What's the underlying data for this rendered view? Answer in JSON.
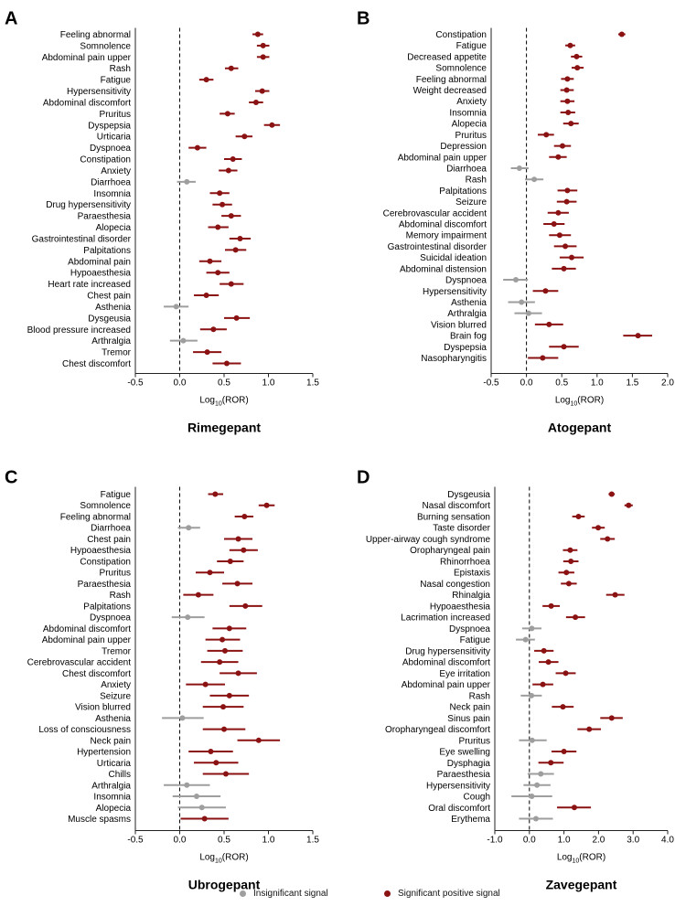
{
  "colors": {
    "significant": "#8b1212",
    "insignificant": "#9e9e9e",
    "axis": "#222222"
  },
  "legend": {
    "insignificant": "Insignificant signal",
    "significant": "Significant positive signal"
  },
  "chart_data": [
    {
      "type": "forest",
      "panel_label": "A",
      "title": "Rimegepant",
      "xlabel": "Log10(ROR)",
      "xlim": [
        -0.5,
        1.5
      ],
      "xticks": [
        "-0.5",
        "0.0",
        "0.5",
        "1.0",
        "1.5"
      ],
      "reference_line": 0,
      "rows": [
        {
          "label": "Feeling abnormal",
          "est": 0.88,
          "lo": 0.82,
          "hi": 0.94,
          "sig": true
        },
        {
          "label": "Somnolence",
          "est": 0.94,
          "lo": 0.87,
          "hi": 1.01,
          "sig": true
        },
        {
          "label": "Abdominal pain upper",
          "est": 0.94,
          "lo": 0.87,
          "hi": 1.01,
          "sig": true
        },
        {
          "label": "Rash",
          "est": 0.58,
          "lo": 0.51,
          "hi": 0.66,
          "sig": true
        },
        {
          "label": "Fatigue",
          "est": 0.3,
          "lo": 0.22,
          "hi": 0.38,
          "sig": true
        },
        {
          "label": "Hypersensitivity",
          "est": 0.93,
          "lo": 0.85,
          "hi": 1.01,
          "sig": true
        },
        {
          "label": "Abdominal discomfort",
          "est": 0.86,
          "lo": 0.78,
          "hi": 0.94,
          "sig": true
        },
        {
          "label": "Pruritus",
          "est": 0.54,
          "lo": 0.45,
          "hi": 0.62,
          "sig": true
        },
        {
          "label": "Dyspepsia",
          "est": 1.04,
          "lo": 0.95,
          "hi": 1.13,
          "sig": true
        },
        {
          "label": "Urticaria",
          "est": 0.73,
          "lo": 0.63,
          "hi": 0.82,
          "sig": true
        },
        {
          "label": "Dyspnoea",
          "est": 0.2,
          "lo": 0.1,
          "hi": 0.3,
          "sig": true
        },
        {
          "label": "Constipation",
          "est": 0.6,
          "lo": 0.5,
          "hi": 0.7,
          "sig": true
        },
        {
          "label": "Anxiety",
          "est": 0.55,
          "lo": 0.44,
          "hi": 0.65,
          "sig": true
        },
        {
          "label": "Diarrhoea",
          "est": 0.08,
          "lo": -0.03,
          "hi": 0.18,
          "sig": false
        },
        {
          "label": "Insomnia",
          "est": 0.45,
          "lo": 0.34,
          "hi": 0.56,
          "sig": true
        },
        {
          "label": "Drug hypersensitivity",
          "est": 0.48,
          "lo": 0.37,
          "hi": 0.59,
          "sig": true
        },
        {
          "label": "Paraesthesia",
          "est": 0.58,
          "lo": 0.47,
          "hi": 0.69,
          "sig": true
        },
        {
          "label": "Alopecia",
          "est": 0.43,
          "lo": 0.32,
          "hi": 0.55,
          "sig": true
        },
        {
          "label": "Gastrointestinal disorder",
          "est": 0.68,
          "lo": 0.56,
          "hi": 0.8,
          "sig": true
        },
        {
          "label": "Palpitations",
          "est": 0.63,
          "lo": 0.51,
          "hi": 0.75,
          "sig": true
        },
        {
          "label": "Abdominal pain",
          "est": 0.34,
          "lo": 0.22,
          "hi": 0.47,
          "sig": true
        },
        {
          "label": "Hypoaesthesia",
          "est": 0.43,
          "lo": 0.3,
          "hi": 0.56,
          "sig": true
        },
        {
          "label": "Heart rate increased",
          "est": 0.58,
          "lo": 0.45,
          "hi": 0.72,
          "sig": true
        },
        {
          "label": "Chest pain",
          "est": 0.3,
          "lo": 0.16,
          "hi": 0.44,
          "sig": true
        },
        {
          "label": "Asthenia",
          "est": -0.04,
          "lo": -0.18,
          "hi": 0.1,
          "sig": false
        },
        {
          "label": "Dysgeusia",
          "est": 0.64,
          "lo": 0.5,
          "hi": 0.79,
          "sig": true
        },
        {
          "label": "Blood pressure increased",
          "est": 0.38,
          "lo": 0.23,
          "hi": 0.53,
          "sig": true
        },
        {
          "label": "Arthralgia",
          "est": 0.04,
          "lo": -0.11,
          "hi": 0.2,
          "sig": false
        },
        {
          "label": "Tremor",
          "est": 0.31,
          "lo": 0.15,
          "hi": 0.47,
          "sig": true
        },
        {
          "label": "Chest discomfort",
          "est": 0.53,
          "lo": 0.37,
          "hi": 0.69,
          "sig": true
        }
      ]
    },
    {
      "type": "forest",
      "panel_label": "B",
      "title": "Atogepant",
      "xlabel": "Log10(ROR)",
      "xlim": [
        -0.5,
        2.0
      ],
      "xticks": [
        "-0.5",
        "0.0",
        "0.5",
        "1.0",
        "1.5",
        "2.0"
      ],
      "reference_line": 0,
      "rows": [
        {
          "label": "Constipation",
          "est": 1.35,
          "lo": 1.3,
          "hi": 1.4,
          "sig": true
        },
        {
          "label": "Fatigue",
          "est": 0.62,
          "lo": 0.55,
          "hi": 0.69,
          "sig": true
        },
        {
          "label": "Decreased appetite",
          "est": 0.71,
          "lo": 0.63,
          "hi": 0.79,
          "sig": true
        },
        {
          "label": "Somnolence",
          "est": 0.72,
          "lo": 0.64,
          "hi": 0.81,
          "sig": true
        },
        {
          "label": "Feeling abnormal",
          "est": 0.58,
          "lo": 0.49,
          "hi": 0.67,
          "sig": true
        },
        {
          "label": "Weight decreased",
          "est": 0.57,
          "lo": 0.48,
          "hi": 0.67,
          "sig": true
        },
        {
          "label": "Anxiety",
          "est": 0.58,
          "lo": 0.48,
          "hi": 0.68,
          "sig": true
        },
        {
          "label": "Insomnia",
          "est": 0.59,
          "lo": 0.48,
          "hi": 0.69,
          "sig": true
        },
        {
          "label": "Alopecia",
          "est": 0.63,
          "lo": 0.52,
          "hi": 0.74,
          "sig": true
        },
        {
          "label": "Pruritus",
          "est": 0.28,
          "lo": 0.16,
          "hi": 0.39,
          "sig": true
        },
        {
          "label": "Depression",
          "est": 0.51,
          "lo": 0.39,
          "hi": 0.63,
          "sig": true
        },
        {
          "label": "Abdominal pain upper",
          "est": 0.45,
          "lo": 0.32,
          "hi": 0.57,
          "sig": true
        },
        {
          "label": "Diarrhoea",
          "est": -0.1,
          "lo": -0.22,
          "hi": 0.03,
          "sig": false
        },
        {
          "label": "Rash",
          "est": 0.11,
          "lo": -0.02,
          "hi": 0.24,
          "sig": false
        },
        {
          "label": "Palpitations",
          "est": 0.58,
          "lo": 0.44,
          "hi": 0.72,
          "sig": true
        },
        {
          "label": "Seizure",
          "est": 0.57,
          "lo": 0.43,
          "hi": 0.71,
          "sig": true
        },
        {
          "label": "Cerebrovascular accident",
          "est": 0.45,
          "lo": 0.3,
          "hi": 0.6,
          "sig": true
        },
        {
          "label": "Abdominal discomfort",
          "est": 0.39,
          "lo": 0.24,
          "hi": 0.54,
          "sig": true
        },
        {
          "label": "Memory impairment",
          "est": 0.47,
          "lo": 0.32,
          "hi": 0.63,
          "sig": true
        },
        {
          "label": "Gastrointestinal disorder",
          "est": 0.55,
          "lo": 0.39,
          "hi": 0.71,
          "sig": true
        },
        {
          "label": "Suicidal ideation",
          "est": 0.64,
          "lo": 0.47,
          "hi": 0.81,
          "sig": true
        },
        {
          "label": "Abdominal distension",
          "est": 0.53,
          "lo": 0.36,
          "hi": 0.7,
          "sig": true
        },
        {
          "label": "Dyspnoea",
          "est": -0.15,
          "lo": -0.33,
          "hi": 0.02,
          "sig": false
        },
        {
          "label": "Hypersensitivity",
          "est": 0.27,
          "lo": 0.09,
          "hi": 0.45,
          "sig": true
        },
        {
          "label": "Asthenia",
          "est": -0.07,
          "lo": -0.26,
          "hi": 0.12,
          "sig": false
        },
        {
          "label": "Arthralgia",
          "est": 0.03,
          "lo": -0.17,
          "hi": 0.22,
          "sig": false
        },
        {
          "label": "Vision blurred",
          "est": 0.32,
          "lo": 0.12,
          "hi": 0.52,
          "sig": true
        },
        {
          "label": "Brain fog",
          "est": 1.58,
          "lo": 1.37,
          "hi": 1.78,
          "sig": true
        },
        {
          "label": "Dyspepsia",
          "est": 0.53,
          "lo": 0.32,
          "hi": 0.74,
          "sig": true
        },
        {
          "label": "Nasopharyngitis",
          "est": 0.23,
          "lo": 0.02,
          "hi": 0.45,
          "sig": true
        }
      ]
    },
    {
      "type": "forest",
      "panel_label": "C",
      "title": "Ubrogepant",
      "xlabel": "Log10(ROR)",
      "xlim": [
        -0.5,
        1.5
      ],
      "xticks": [
        "-0.5",
        "0.0",
        "0.5",
        "1.0",
        "1.5"
      ],
      "reference_line": 0,
      "rows": [
        {
          "label": "Fatigue",
          "est": 0.4,
          "lo": 0.32,
          "hi": 0.49,
          "sig": true
        },
        {
          "label": "Somnolence",
          "est": 0.98,
          "lo": 0.89,
          "hi": 1.07,
          "sig": true
        },
        {
          "label": "Feeling abnormal",
          "est": 0.73,
          "lo": 0.62,
          "hi": 0.83,
          "sig": true
        },
        {
          "label": "Diarrhoea",
          "est": 0.1,
          "lo": -0.02,
          "hi": 0.23,
          "sig": false
        },
        {
          "label": "Chest pain",
          "est": 0.66,
          "lo": 0.5,
          "hi": 0.82,
          "sig": true
        },
        {
          "label": "Hypoaesthesia",
          "est": 0.72,
          "lo": 0.56,
          "hi": 0.88,
          "sig": true
        },
        {
          "label": "Constipation",
          "est": 0.57,
          "lo": 0.42,
          "hi": 0.72,
          "sig": true
        },
        {
          "label": "Pruritus",
          "est": 0.34,
          "lo": 0.18,
          "hi": 0.5,
          "sig": true
        },
        {
          "label": "Paraesthesia",
          "est": 0.65,
          "lo": 0.48,
          "hi": 0.82,
          "sig": true
        },
        {
          "label": "Rash",
          "est": 0.21,
          "lo": 0.04,
          "hi": 0.38,
          "sig": true
        },
        {
          "label": "Palpitations",
          "est": 0.74,
          "lo": 0.56,
          "hi": 0.93,
          "sig": true
        },
        {
          "label": "Dyspnoea",
          "est": 0.09,
          "lo": -0.09,
          "hi": 0.28,
          "sig": false
        },
        {
          "label": "Abdominal discomfort",
          "est": 0.56,
          "lo": 0.37,
          "hi": 0.75,
          "sig": true
        },
        {
          "label": "Abdominal pain upper",
          "est": 0.48,
          "lo": 0.29,
          "hi": 0.68,
          "sig": true
        },
        {
          "label": "Tremor",
          "est": 0.51,
          "lo": 0.31,
          "hi": 0.71,
          "sig": true
        },
        {
          "label": "Cerebrovascular accident",
          "est": 0.45,
          "lo": 0.24,
          "hi": 0.66,
          "sig": true
        },
        {
          "label": "Chest discomfort",
          "est": 0.66,
          "lo": 0.45,
          "hi": 0.87,
          "sig": true
        },
        {
          "label": "Anxiety",
          "est": 0.29,
          "lo": 0.07,
          "hi": 0.51,
          "sig": true
        },
        {
          "label": "Seizure",
          "est": 0.56,
          "lo": 0.34,
          "hi": 0.78,
          "sig": true
        },
        {
          "label": "Vision blurred",
          "est": 0.49,
          "lo": 0.26,
          "hi": 0.72,
          "sig": true
        },
        {
          "label": "Asthenia",
          "est": 0.03,
          "lo": -0.2,
          "hi": 0.27,
          "sig": false
        },
        {
          "label": "Loss of consciousness",
          "est": 0.5,
          "lo": 0.26,
          "hi": 0.74,
          "sig": true
        },
        {
          "label": "Neck pain",
          "est": 0.89,
          "lo": 0.65,
          "hi": 1.13,
          "sig": true
        },
        {
          "label": "Hypertension",
          "est": 0.35,
          "lo": 0.1,
          "hi": 0.6,
          "sig": true
        },
        {
          "label": "Urticaria",
          "est": 0.41,
          "lo": 0.16,
          "hi": 0.66,
          "sig": true
        },
        {
          "label": "Chills",
          "est": 0.52,
          "lo": 0.26,
          "hi": 0.78,
          "sig": true
        },
        {
          "label": "Arthralgia",
          "est": 0.08,
          "lo": -0.18,
          "hi": 0.34,
          "sig": false
        },
        {
          "label": "Insomnia",
          "est": 0.19,
          "lo": -0.08,
          "hi": 0.46,
          "sig": false
        },
        {
          "label": "Alopecia",
          "est": 0.25,
          "lo": -0.02,
          "hi": 0.52,
          "sig": false
        },
        {
          "label": "Muscle spasms",
          "est": 0.28,
          "lo": 0.01,
          "hi": 0.55,
          "sig": true
        }
      ]
    },
    {
      "type": "forest",
      "panel_label": "D",
      "title": "Zavegepant",
      "xlabel": "Log10(ROR)",
      "xlim": [
        -1.0,
        4.0
      ],
      "xticks": [
        "-1.0",
        "0.0",
        "1.0",
        "2.0",
        "3.0",
        "4.0"
      ],
      "reference_line": 0,
      "rows": [
        {
          "label": "Dysgeusia",
          "est": 2.38,
          "lo": 2.29,
          "hi": 2.47,
          "sig": true
        },
        {
          "label": "Nasal discomfort",
          "est": 2.87,
          "lo": 2.75,
          "hi": 2.99,
          "sig": true
        },
        {
          "label": "Burning sensation",
          "est": 1.42,
          "lo": 1.24,
          "hi": 1.6,
          "sig": true
        },
        {
          "label": "Taste disorder",
          "est": 1.99,
          "lo": 1.81,
          "hi": 2.18,
          "sig": true
        },
        {
          "label": "Upper-airway cough syndrome",
          "est": 2.26,
          "lo": 2.05,
          "hi": 2.47,
          "sig": true
        },
        {
          "label": "Oropharyngeal pain",
          "est": 1.18,
          "lo": 0.97,
          "hi": 1.39,
          "sig": true
        },
        {
          "label": "Rhinorrhoea",
          "est": 1.2,
          "lo": 0.98,
          "hi": 1.42,
          "sig": true
        },
        {
          "label": "Epistaxis",
          "est": 1.07,
          "lo": 0.84,
          "hi": 1.3,
          "sig": true
        },
        {
          "label": "Nasal congestion",
          "est": 1.14,
          "lo": 0.91,
          "hi": 1.37,
          "sig": true
        },
        {
          "label": "Rhinalgia",
          "est": 2.48,
          "lo": 2.22,
          "hi": 2.75,
          "sig": true
        },
        {
          "label": "Hypoaesthesia",
          "est": 0.63,
          "lo": 0.38,
          "hi": 0.88,
          "sig": true
        },
        {
          "label": "Lacrimation increased",
          "est": 1.33,
          "lo": 1.06,
          "hi": 1.61,
          "sig": true
        },
        {
          "label": "Dyspnoea",
          "est": 0.07,
          "lo": -0.21,
          "hi": 0.35,
          "sig": false
        },
        {
          "label": "Fatigue",
          "est": -0.11,
          "lo": -0.39,
          "hi": 0.16,
          "sig": false
        },
        {
          "label": "Drug hypersensitivity",
          "est": 0.42,
          "lo": 0.14,
          "hi": 0.7,
          "sig": true
        },
        {
          "label": "Abdominal discomfort",
          "est": 0.55,
          "lo": 0.27,
          "hi": 0.84,
          "sig": true
        },
        {
          "label": "Eye irritation",
          "est": 1.05,
          "lo": 0.76,
          "hi": 1.34,
          "sig": true
        },
        {
          "label": "Abdominal pain upper",
          "est": 0.39,
          "lo": 0.09,
          "hi": 0.69,
          "sig": true
        },
        {
          "label": "Rash",
          "est": 0.06,
          "lo": -0.25,
          "hi": 0.36,
          "sig": false
        },
        {
          "label": "Neck pain",
          "est": 0.97,
          "lo": 0.65,
          "hi": 1.28,
          "sig": true
        },
        {
          "label": "Sinus pain",
          "est": 2.38,
          "lo": 2.05,
          "hi": 2.7,
          "sig": true
        },
        {
          "label": "Oropharyngeal discomfort",
          "est": 1.73,
          "lo": 1.39,
          "hi": 2.07,
          "sig": true
        },
        {
          "label": "Pruritus",
          "est": 0.08,
          "lo": -0.3,
          "hi": 0.5,
          "sig": false
        },
        {
          "label": "Eye swelling",
          "est": 1.0,
          "lo": 0.64,
          "hi": 1.36,
          "sig": true
        },
        {
          "label": "Dysphagia",
          "est": 0.62,
          "lo": 0.26,
          "hi": 0.99,
          "sig": true
        },
        {
          "label": "Paraesthesia",
          "est": 0.33,
          "lo": -0.05,
          "hi": 0.71,
          "sig": false
        },
        {
          "label": "Hypersensitivity",
          "est": 0.22,
          "lo": -0.17,
          "hi": 0.61,
          "sig": false
        },
        {
          "label": "Cough",
          "est": 0.07,
          "lo": -0.52,
          "hi": 0.66,
          "sig": false
        },
        {
          "label": "Oral discomfort",
          "est": 1.3,
          "lo": 0.8,
          "hi": 1.78,
          "sig": true
        },
        {
          "label": "Erythema",
          "est": 0.19,
          "lo": -0.3,
          "hi": 0.68,
          "sig": false
        }
      ]
    }
  ]
}
